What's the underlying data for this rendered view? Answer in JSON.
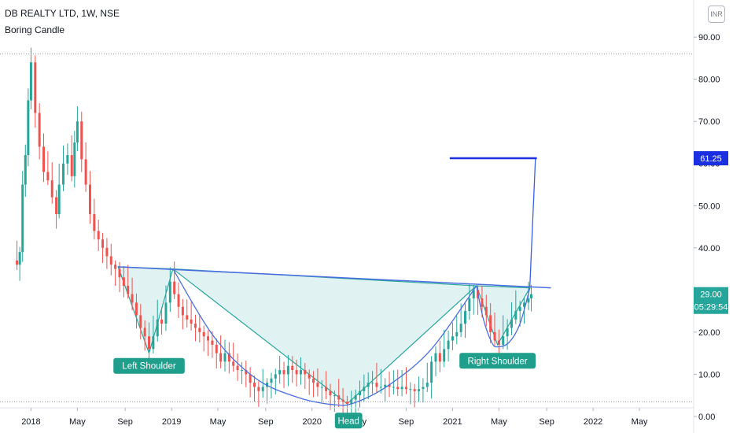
{
  "header": {
    "symbol_line": "DB REALTY LTD, 1W, NSE",
    "study_label": "Boring Candle",
    "currency": "INR"
  },
  "chart_data": {
    "type": "candlestick",
    "title": "DB REALTY LTD, 1W, NSE",
    "y_ticks": [
      "0.00",
      "10.00",
      "20.00",
      "30.00",
      "40.00",
      "50.00",
      "60.00",
      "70.00",
      "80.00",
      "90.00"
    ],
    "y_range": [
      -3,
      96
    ],
    "x_ticks": [
      "2018",
      "May",
      "Sep",
      "2019",
      "May",
      "Sep",
      "2020",
      "May",
      "Sep",
      "2021",
      "May",
      "Sep",
      "2022",
      "May"
    ],
    "x_tick_values": [
      2018.0,
      2018.33,
      2018.67,
      2019.0,
      2019.33,
      2019.67,
      2020.0,
      2020.33,
      2020.67,
      2021.0,
      2021.33,
      2021.67,
      2022.0,
      2022.33
    ],
    "x_range": [
      2017.88,
      2022.66
    ],
    "price_badges": [
      {
        "label": "61.25",
        "value": 61.25,
        "color": "#1a2fe0"
      },
      {
        "label": "29.00",
        "value": 29.0,
        "color": "#26a69a"
      },
      {
        "label": "05:29:54",
        "value": 26.0,
        "color": "#26a69a"
      }
    ],
    "dotted_levels": [
      86,
      3.5
    ],
    "target_line": {
      "value": 61.25,
      "x_from": 2020.98,
      "x_to": 2021.6
    },
    "neckline": {
      "from": [
        2018.62,
        35.5
      ],
      "to": [
        2021.7,
        30.5
      ]
    },
    "projection": [
      [
        2021.55,
        30.8
      ],
      [
        2021.59,
        61.25
      ]
    ],
    "patterns": [
      {
        "x": [
          2018.62,
          2018.84,
          2019.01
        ],
        "y": [
          35.5,
          15,
          35
        ]
      },
      {
        "x": [
          2019.01,
          2020.25,
          2021.17
        ],
        "y": [
          35,
          3,
          31
        ]
      },
      {
        "x": [
          2021.17,
          2021.32,
          2021.55
        ],
        "y": [
          31,
          17,
          30.5
        ]
      }
    ],
    "curves": [
      {
        "x": [
          2019.01,
          2019.3,
          2019.6,
          2019.9,
          2020.15,
          2020.3,
          2020.55,
          2020.85,
          2021.17
        ],
        "y": [
          35,
          19,
          9,
          4.5,
          2.8,
          3.2,
          7.5,
          16,
          31
        ]
      },
      {
        "x": [
          2021.17,
          2021.22,
          2021.28,
          2021.32,
          2021.4,
          2021.48,
          2021.55
        ],
        "y": [
          31,
          23,
          17.5,
          16.5,
          17.5,
          22,
          30.5
        ]
      }
    ],
    "annotations": [
      {
        "text": "Left Shoulder",
        "x": 2018.84,
        "y": 12
      },
      {
        "text": "Head",
        "x": 2020.26,
        "y": -1
      },
      {
        "text": "Right Shoulder",
        "x": 2021.32,
        "y": 13.2
      }
    ],
    "price_points": [
      [
        2017.88,
        37
      ],
      [
        2017.9,
        36
      ],
      [
        2017.92,
        39
      ],
      [
        2017.94,
        55
      ],
      [
        2017.96,
        62
      ],
      [
        2017.98,
        75
      ],
      [
        2018.0,
        84
      ],
      [
        2018.03,
        72
      ],
      [
        2018.06,
        64
      ],
      [
        2018.09,
        58
      ],
      [
        2018.12,
        56
      ],
      [
        2018.15,
        52
      ],
      [
        2018.18,
        48
      ],
      [
        2018.2,
        55
      ],
      [
        2018.23,
        60
      ],
      [
        2018.26,
        62
      ],
      [
        2018.29,
        57
      ],
      [
        2018.31,
        65
      ],
      [
        2018.33,
        70
      ],
      [
        2018.36,
        61
      ],
      [
        2018.39,
        55
      ],
      [
        2018.42,
        48
      ],
      [
        2018.45,
        44
      ],
      [
        2018.48,
        42
      ],
      [
        2018.51,
        40
      ],
      [
        2018.54,
        38
      ],
      [
        2018.57,
        36
      ],
      [
        2018.6,
        35
      ],
      [
        2018.63,
        33
      ],
      [
        2018.66,
        31
      ],
      [
        2018.69,
        29
      ],
      [
        2018.72,
        27
      ],
      [
        2018.75,
        24
      ],
      [
        2018.78,
        21
      ],
      [
        2018.81,
        19
      ],
      [
        2018.84,
        16
      ],
      [
        2018.87,
        19
      ],
      [
        2018.9,
        23
      ],
      [
        2018.93,
        22
      ],
      [
        2018.96,
        27
      ],
      [
        2018.99,
        32
      ],
      [
        2019.02,
        29
      ],
      [
        2019.05,
        26
      ],
      [
        2019.08,
        24
      ],
      [
        2019.11,
        23
      ],
      [
        2019.14,
        22
      ],
      [
        2019.17,
        21
      ],
      [
        2019.2,
        20
      ],
      [
        2019.23,
        19
      ],
      [
        2019.26,
        18
      ],
      [
        2019.29,
        17
      ],
      [
        2019.32,
        15
      ],
      [
        2019.35,
        13
      ],
      [
        2019.38,
        15
      ],
      [
        2019.41,
        13
      ],
      [
        2019.44,
        12
      ],
      [
        2019.47,
        11
      ],
      [
        2019.5,
        11
      ],
      [
        2019.53,
        10
      ],
      [
        2019.56,
        8
      ],
      [
        2019.59,
        7
      ],
      [
        2019.62,
        6
      ],
      [
        2019.65,
        7
      ],
      [
        2019.68,
        8
      ],
      [
        2019.71,
        9
      ],
      [
        2019.74,
        10
      ],
      [
        2019.77,
        11
      ],
      [
        2019.8,
        10
      ],
      [
        2019.83,
        12
      ],
      [
        2019.86,
        11
      ],
      [
        2019.89,
        10
      ],
      [
        2019.92,
        11
      ],
      [
        2019.95,
        10
      ],
      [
        2019.98,
        9
      ],
      [
        2020.01,
        8
      ],
      [
        2020.04,
        7
      ],
      [
        2020.07,
        7
      ],
      [
        2020.1,
        6
      ],
      [
        2020.13,
        5
      ],
      [
        2020.16,
        5
      ],
      [
        2020.19,
        4
      ],
      [
        2020.22,
        3.5
      ],
      [
        2020.25,
        3
      ],
      [
        2020.28,
        4
      ],
      [
        2020.31,
        5
      ],
      [
        2020.34,
        6
      ],
      [
        2020.37,
        7
      ],
      [
        2020.4,
        8
      ],
      [
        2020.43,
        8
      ],
      [
        2020.46,
        7
      ],
      [
        2020.49,
        7
      ],
      [
        2020.52,
        7.5
      ],
      [
        2020.55,
        7
      ],
      [
        2020.58,
        7
      ],
      [
        2020.61,
        6.5
      ],
      [
        2020.64,
        7
      ],
      [
        2020.67,
        6.5
      ],
      [
        2020.7,
        6.5
      ],
      [
        2020.73,
        6
      ],
      [
        2020.76,
        6.5
      ],
      [
        2020.79,
        7
      ],
      [
        2020.82,
        8
      ],
      [
        2020.85,
        13
      ],
      [
        2020.88,
        15
      ],
      [
        2020.91,
        13
      ],
      [
        2020.94,
        16
      ],
      [
        2020.97,
        18
      ],
      [
        2021.0,
        19
      ],
      [
        2021.03,
        20
      ],
      [
        2021.06,
        22
      ],
      [
        2021.09,
        25
      ],
      [
        2021.12,
        28
      ],
      [
        2021.15,
        30
      ],
      [
        2021.18,
        28
      ],
      [
        2021.21,
        26
      ],
      [
        2021.24,
        24
      ],
      [
        2021.27,
        20
      ],
      [
        2021.3,
        18
      ],
      [
        2021.33,
        17
      ],
      [
        2021.36,
        19
      ],
      [
        2021.39,
        21
      ],
      [
        2021.42,
        23
      ],
      [
        2021.45,
        25
      ],
      [
        2021.48,
        26
      ],
      [
        2021.51,
        27
      ],
      [
        2021.54,
        28
      ],
      [
        2021.56,
        29
      ]
    ]
  }
}
